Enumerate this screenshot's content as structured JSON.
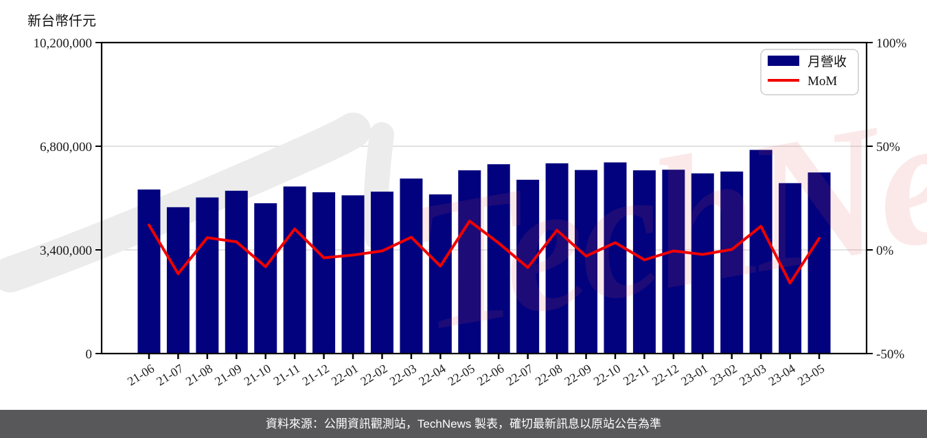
{
  "page": {
    "unit_label": "新台幣仟元",
    "footer": "資料來源：公開資訊觀測站，TechNews 製表，確切最新訊息以原站公告為準",
    "watermark_text": "TechNews"
  },
  "chart_data": {
    "type": "combo_bar_line",
    "title": "",
    "categories": [
      "21-06",
      "21-07",
      "21-08",
      "21-09",
      "21-10",
      "21-11",
      "21-12",
      "22-01",
      "22-02",
      "22-03",
      "22-04",
      "22-05",
      "22-06",
      "22-07",
      "22-08",
      "22-09",
      "22-10",
      "22-11",
      "22-12",
      "23-01",
      "23-02",
      "23-03",
      "23-04",
      "23-05"
    ],
    "series": [
      {
        "name": "月營收",
        "type": "bar",
        "axis": "left",
        "color": "#02027e",
        "values": [
          5380000,
          4800000,
          5120000,
          5340000,
          4930000,
          5480000,
          5290000,
          5190000,
          5310000,
          5740000,
          5220000,
          6010000,
          6210000,
          5700000,
          6240000,
          6020000,
          6270000,
          6010000,
          6030000,
          5910000,
          5970000,
          6680000,
          5590000,
          5940000
        ]
      },
      {
        "name": "MoM",
        "type": "line",
        "axis": "right",
        "color": "#f10000",
        "unit": "%",
        "values": [
          12.0,
          -11.5,
          5.9,
          3.9,
          -8.1,
          10.1,
          -3.8,
          -2.5,
          -0.5,
          6.1,
          -7.8,
          13.9,
          3.3,
          -8.5,
          9.5,
          -3.0,
          3.5,
          -4.8,
          -0.5,
          -2.2,
          0.2,
          11.4,
          -16.0,
          5.6
        ]
      }
    ],
    "left_axis": {
      "label": "新台幣仟元",
      "min": 0,
      "max": 10200000,
      "ticks": [
        0,
        3400000,
        6800000,
        10200000
      ],
      "tick_labels": [
        "0",
        "3,400,000",
        "6,800,000",
        "10,200,000"
      ]
    },
    "right_axis": {
      "min": -50,
      "max": 100,
      "ticks": [
        -50,
        0,
        50,
        100
      ],
      "tick_labels": [
        "-50%",
        "0%",
        "50%",
        "100%"
      ]
    },
    "grid": {
      "show_horizontal": true,
      "at_left_values": [
        3400000,
        6800000
      ]
    },
    "legend": {
      "position": "top-right",
      "entries": [
        "月營收",
        "MoM"
      ]
    }
  },
  "colors": {
    "grid": "#d9d9d9",
    "axis": "#000000",
    "tick_text": "#1a1a1a",
    "footer_bg": "#58585a",
    "footer_text": "#ffffff",
    "watermark_pink": "#e05050",
    "watermark_gray": "#ececec",
    "legend_border": "#cccccc",
    "legend_bg": "#ffffff"
  }
}
